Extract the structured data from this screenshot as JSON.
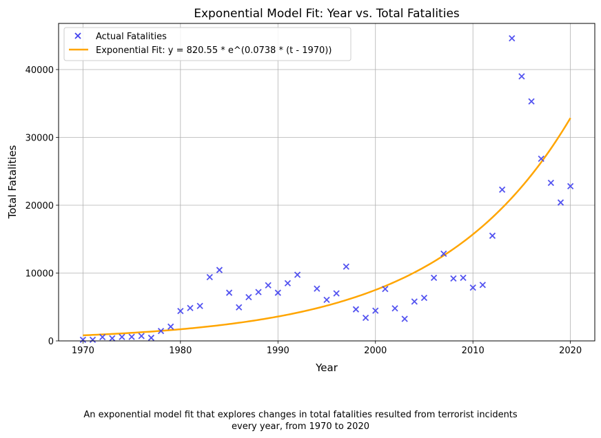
{
  "chart_data": {
    "type": "scatter",
    "title": "Exponential Model Fit: Year vs. Total Fatalities",
    "xlabel": "Year",
    "ylabel": "Total Fatalities",
    "xlim": [
      1967.5,
      2022.5
    ],
    "ylim": [
      0,
      46800
    ],
    "xticks": [
      1970,
      1980,
      1990,
      2000,
      2010,
      2020
    ],
    "yticks": [
      0,
      10000,
      20000,
      30000,
      40000
    ],
    "grid": true,
    "legend_position": "top-left",
    "series": [
      {
        "name": "Actual Fatalities",
        "kind": "scatter",
        "marker": "x",
        "color": "#4040ee",
        "x": [
          1970,
          1971,
          1972,
          1973,
          1974,
          1975,
          1976,
          1977,
          1978,
          1979,
          1980,
          1981,
          1982,
          1983,
          1984,
          1985,
          1986,
          1987,
          1988,
          1989,
          1990,
          1991,
          1992,
          1994,
          1995,
          1996,
          1997,
          1998,
          1999,
          2000,
          2001,
          2002,
          2003,
          2004,
          2005,
          2006,
          2007,
          2008,
          2009,
          2010,
          2011,
          2012,
          2013,
          2014,
          2015,
          2016,
          2017,
          2018,
          2019,
          2020
        ],
        "y": [
          170,
          170,
          560,
          380,
          580,
          600,
          720,
          450,
          1460,
          2100,
          4400,
          4850,
          5150,
          9400,
          10450,
          7100,
          4950,
          6450,
          7200,
          8200,
          7100,
          8500,
          9750,
          7700,
          6050,
          7000,
          10950,
          4650,
          3400,
          4450,
          7650,
          4800,
          3250,
          5800,
          6350,
          9300,
          12850,
          9200,
          9300,
          7850,
          8250,
          15500,
          22300,
          44600,
          39000,
          35300,
          26850,
          23300,
          20400,
          22800
        ]
      },
      {
        "name": "Exponential Fit: y = 820.55 * e^(0.0738 * (t - 1970))",
        "kind": "line",
        "color": "#ffa500",
        "model": {
          "a": 820.55,
          "b": 0.0738,
          "t0": 1970,
          "range": [
            1970,
            2020
          ]
        }
      }
    ]
  },
  "caption": {
    "line1": "An exponential model fit that explores changes in total fatalities resulted from terrorist incidents",
    "line2": "every year, from 1970 to 2020"
  }
}
